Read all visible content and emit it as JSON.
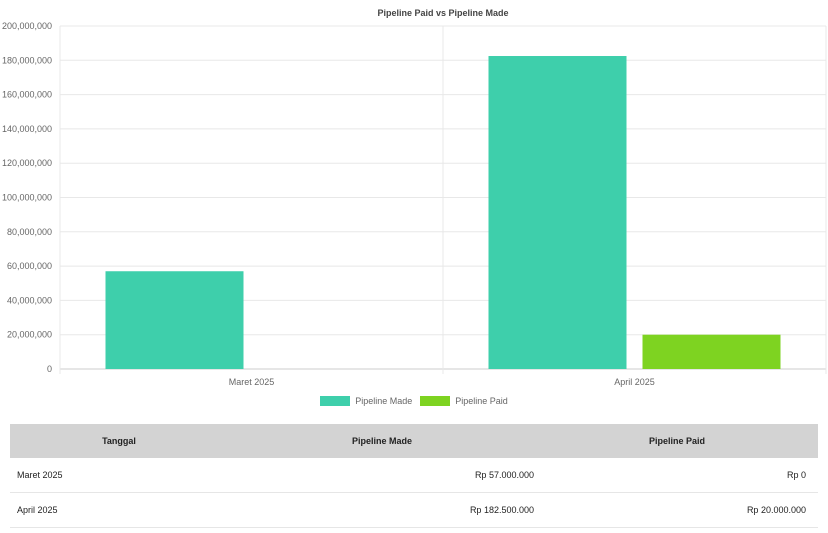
{
  "chart_data": {
    "type": "bar",
    "title": "Pipeline Paid vs Pipeline Made",
    "categories": [
      "Maret 2025",
      "April 2025"
    ],
    "series": [
      {
        "name": "Pipeline Made",
        "values": [
          57000000,
          182500000
        ],
        "color": "#3ecfab"
      },
      {
        "name": "Pipeline Paid",
        "values": [
          0,
          20000000
        ],
        "color": "#7ed321"
      }
    ],
    "ylim": [
      0,
      200000000
    ],
    "yticks": [
      "0",
      "20,000,000",
      "40,000,000",
      "60,000,000",
      "80,000,000",
      "100,000,000",
      "120,000,000",
      "140,000,000",
      "160,000,000",
      "180,000,000",
      "200,000,000"
    ],
    "grid": true,
    "legend_position": "bottom"
  },
  "table": {
    "headers": [
      "Tanggal",
      "Pipeline Made",
      "Pipeline Paid"
    ],
    "rows": [
      [
        "Maret 2025",
        "Rp 57.000.000",
        "Rp 0"
      ],
      [
        "April 2025",
        "Rp 182.500.000",
        "Rp 20.000.000"
      ]
    ]
  }
}
